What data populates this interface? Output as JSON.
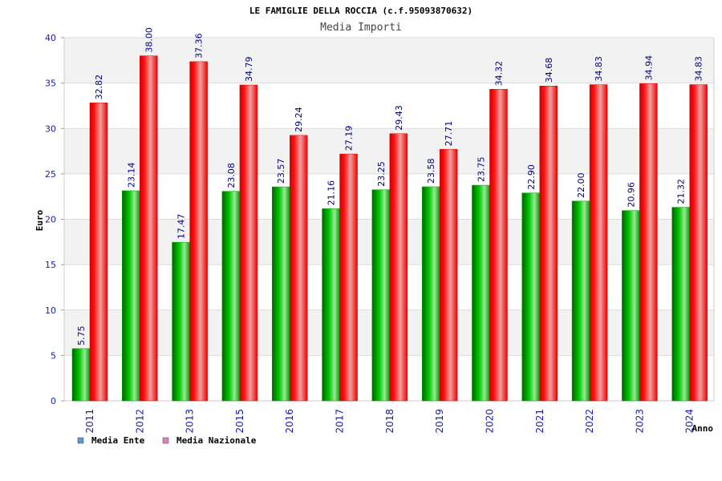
{
  "chart_data": {
    "type": "bar",
    "title": "LE FAMIGLIE DELLA ROCCIA (c.f.95093870632)",
    "subtitle": "Media Importi",
    "xlabel": "Anno",
    "ylabel": "Euro",
    "ylim": [
      0,
      40
    ],
    "yticks": [
      0,
      5,
      10,
      15,
      20,
      25,
      30,
      35,
      40
    ],
    "grid": true,
    "legend_position": "bottom-left",
    "categories": [
      "2011",
      "2012",
      "2013",
      "2015",
      "2016",
      "2017",
      "2018",
      "2019",
      "2020",
      "2021",
      "2022",
      "2023",
      "2024"
    ],
    "series": [
      {
        "name": "Media Ente",
        "color": "#00b000",
        "legend_color": "#5b9bd5",
        "values": [
          5.75,
          23.14,
          17.47,
          23.08,
          23.57,
          21.16,
          23.25,
          23.58,
          23.75,
          22.9,
          22.0,
          20.96,
          21.32
        ],
        "labels": [
          "5.75",
          "23.14",
          "17.47",
          "23.08",
          "23.57",
          "21.16",
          "23.25",
          "23.58",
          "23.75",
          "22.90",
          "22.00",
          "20.96",
          "21.32"
        ]
      },
      {
        "name": "Media Nazionale",
        "color": "#ee0000",
        "legend_color": "#e080c0",
        "values": [
          32.82,
          38.0,
          37.36,
          34.79,
          29.24,
          27.19,
          29.43,
          27.71,
          34.32,
          34.68,
          34.83,
          34.94,
          34.83
        ],
        "labels": [
          "32.82",
          "38.00",
          "37.36",
          "34.79",
          "29.24",
          "27.19",
          "29.43",
          "27.71",
          "34.32",
          "34.68",
          "34.83",
          "34.94",
          "34.83"
        ]
      }
    ]
  }
}
